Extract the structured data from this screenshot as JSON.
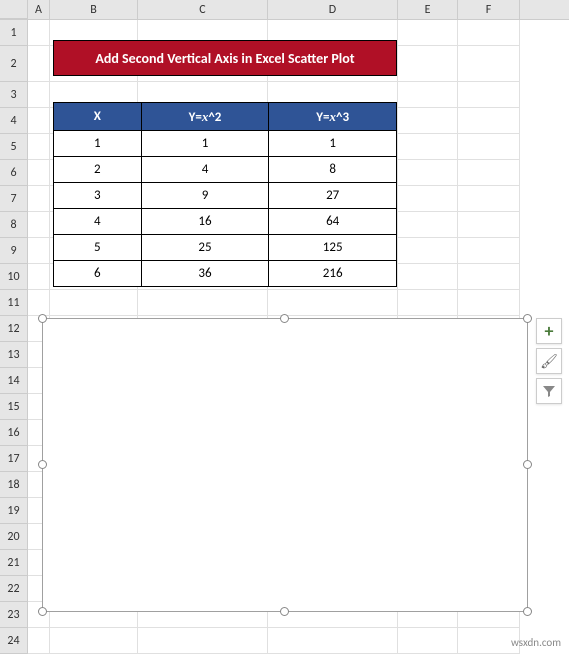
{
  "columns": [
    "A",
    "B",
    "C",
    "D",
    "E",
    "F"
  ],
  "rowCount": 24,
  "tallRows": [
    2
  ],
  "title": {
    "text": "Add Second  Vertical Axis in Excel Scatter Plot",
    "bg": "#b01026",
    "fg": "#ffffff"
  },
  "table": {
    "header_bg": "#2f5496",
    "header_fg": "#ffffff",
    "headers": [
      "X",
      "Y=x^2",
      "Y=x^3"
    ],
    "headers_html": [
      "X",
      "Y=<span class='var'>x</span>^2",
      "Y=<span class='var'>x</span>^3"
    ],
    "rows": [
      [
        "1",
        "1",
        "1"
      ],
      [
        "2",
        "4",
        "8"
      ],
      [
        "3",
        "9",
        "27"
      ],
      [
        "4",
        "16",
        "64"
      ],
      [
        "5",
        "25",
        "125"
      ],
      [
        "6",
        "36",
        "216"
      ]
    ]
  },
  "chart": {
    "selected": true,
    "border_color": "#a0a0a0",
    "handle_color": "#888888"
  },
  "tools": {
    "plus": "+",
    "brush": "🖌",
    "filter": "▼"
  },
  "watermark": "wsxdn.com"
}
